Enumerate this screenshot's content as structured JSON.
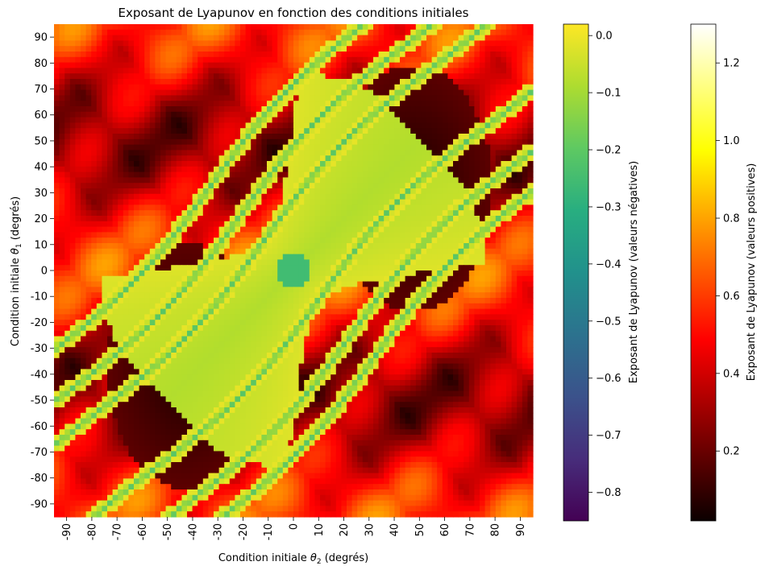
{
  "chart_data": {
    "type": "heatmap",
    "title": "Exposant de Lyapunov en fonction des conditions initiales",
    "xlabel": {
      "prefix": "Condition initiale ",
      "symbol": "θ",
      "sub": "2",
      "suffix": " (degrés)"
    },
    "ylabel": {
      "prefix": "Condition initiale ",
      "symbol": "θ",
      "sub": "1",
      "suffix": " (degrés)"
    },
    "x_range": [
      -90,
      90
    ],
    "y_range": [
      -90,
      90
    ],
    "x_ticks": [
      "-90",
      "-80",
      "-70",
      "-60",
      "-50",
      "-40",
      "-30",
      "-20",
      "-10",
      "0",
      "10",
      "20",
      "30",
      "40",
      "50",
      "60",
      "70",
      "80",
      "90"
    ],
    "y_ticks": [
      "90",
      "80",
      "70",
      "60",
      "50",
      "40",
      "30",
      "20",
      "10",
      "0",
      "-10",
      "-20",
      "-30",
      "-40",
      "-50",
      "-60",
      "-70",
      "-80",
      "-90"
    ],
    "grid": false,
    "colorbars": [
      {
        "label": "Exposant de Lyapunov (valeurs négatives)",
        "colormap": "viridis",
        "range": [
          -0.85,
          0.02
        ],
        "ticks": [
          "0.0",
          "−0.1",
          "−0.2",
          "−0.3",
          "−0.4",
          "−0.5",
          "−0.6",
          "−0.7",
          "−0.8"
        ],
        "tick_values": [
          0.0,
          -0.1,
          -0.2,
          -0.3,
          -0.4,
          -0.5,
          -0.6,
          -0.7,
          -0.8
        ]
      },
      {
        "label": "Exposant de Lyapunov (valeurs positives)",
        "colormap": "hot",
        "range": [
          0.02,
          1.3
        ],
        "ticks": [
          "1.2",
          "1.0",
          "0.8",
          "0.6",
          "0.4",
          "0.2"
        ],
        "tick_values": [
          1.2,
          1.0,
          0.8,
          0.6,
          0.4,
          0.2
        ]
      }
    ]
  }
}
